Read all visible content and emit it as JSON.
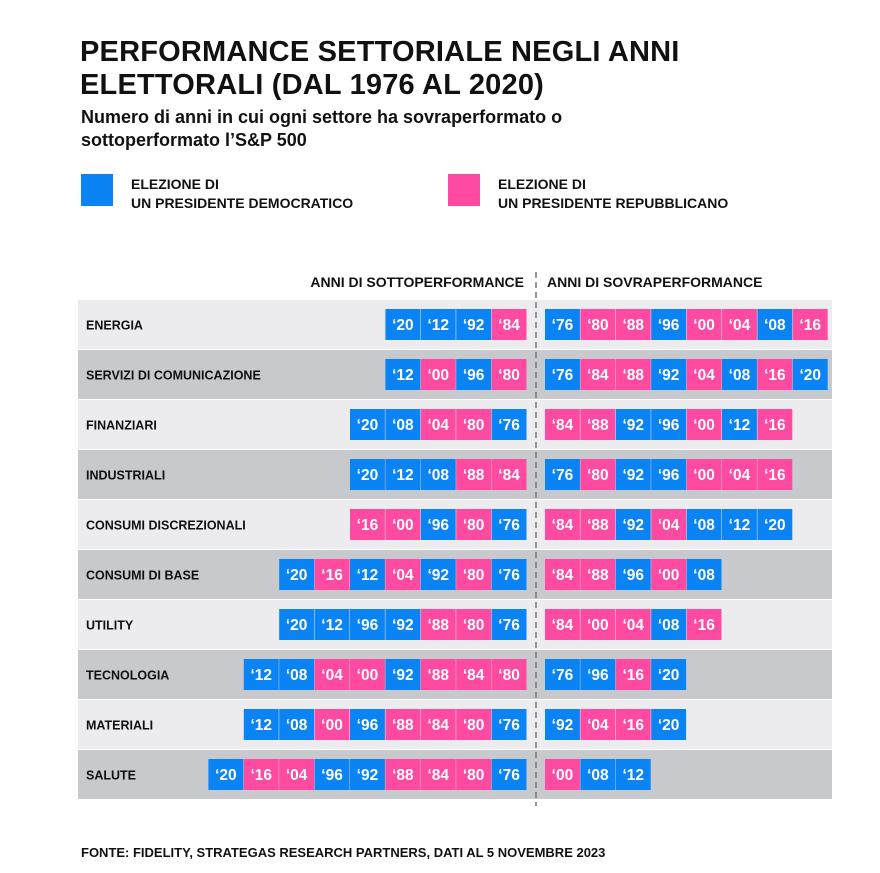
{
  "title": "PERFORMANCE SETTORIALE NEGLI ANNI ELETTORALI (DAL 1976 AL 2020)",
  "subtitle": "Numero di anni in cui ogni settore ha sovraperformato o sottoperformato l’S&P 500",
  "legend": {
    "democratic": {
      "label_line1": "ELEZIONE DI",
      "label_line2": "UN PRESIDENTE DEMOCRATICO",
      "color": "#0a84f5"
    },
    "republican": {
      "label_line1": "ELEZIONE DI",
      "label_line2": "UN PRESIDENTE REPUBBLICANO",
      "color": "#ff4aa1"
    }
  },
  "headers": {
    "under": "ANNI DI SOTTOPERFORMANCE",
    "over": "ANNI DI SOVRAPERFORMANCE"
  },
  "colors": {
    "row_light": "#ececef",
    "row_dark": "#c8c9cd",
    "divider": "#777777"
  },
  "source": "FONTE: FIDELITY, STRATEGAS RESEARCH PARTNERS, DATI AL 5 NOVEMBRE 2023",
  "chart_data": {
    "type": "table",
    "party_by_year": {
      "'76": "D",
      "'80": "R",
      "'84": "R",
      "'88": "R",
      "'92": "D",
      "'96": "D",
      "'00": "R",
      "'04": "R",
      "'08": "D",
      "'12": "D",
      "'16": "R",
      "'20": "D"
    },
    "sectors": [
      {
        "name": "ENERGIA",
        "under": [
          "'20",
          "'12",
          "'92",
          "'84"
        ],
        "over": [
          "'76",
          "'80",
          "'88",
          "'96",
          "'00",
          "'04",
          "'08",
          "'16"
        ]
      },
      {
        "name": "SERVIZI DI COMUNICAZIONE",
        "under": [
          "'12",
          "'00",
          "'96",
          "'80"
        ],
        "over": [
          "'76",
          "'84",
          "'88",
          "'92",
          "'04",
          "'08",
          "'16",
          "'20"
        ]
      },
      {
        "name": "FINANZIARI",
        "under": [
          "'20",
          "'08",
          "'04",
          "'80",
          "'76"
        ],
        "over": [
          "'84",
          "'88",
          "'92",
          "'96",
          "'00",
          "'12",
          "'16"
        ]
      },
      {
        "name": "INDUSTRIALI",
        "under": [
          "'20",
          "'12",
          "'08",
          "'88",
          "'84"
        ],
        "over": [
          "'76",
          "'80",
          "'92",
          "'96",
          "'00",
          "'04",
          "'16"
        ]
      },
      {
        "name": "CONSUMI DISCREZIONALI",
        "under": [
          "'16",
          "'00",
          "'96",
          "'80",
          "'76"
        ],
        "over": [
          "'84",
          "'88",
          "'92",
          "'04",
          "'08",
          "'12",
          "'20"
        ]
      },
      {
        "name": "CONSUMI DI BASE",
        "under": [
          "'20",
          "'16",
          "'12",
          "'04",
          "'92",
          "'80",
          "'76"
        ],
        "over": [
          "'84",
          "'88",
          "'96",
          "'00",
          "'08"
        ]
      },
      {
        "name": "UTILITY",
        "under": [
          "'20",
          "'12",
          "'96",
          "'92",
          "'88",
          "'80",
          "'76"
        ],
        "over": [
          "'84",
          "'00",
          "'04",
          "'08",
          "'16"
        ]
      },
      {
        "name": "TECNOLOGIA",
        "under": [
          "'12",
          "'08",
          "'04",
          "'00",
          "'92",
          "'88",
          "'84",
          "'80"
        ],
        "over": [
          "'76",
          "'96",
          "'16",
          "'20"
        ]
      },
      {
        "name": "MATERIALI",
        "under": [
          "'12",
          "'08",
          "'00",
          "'96",
          "'88",
          "'84",
          "'80",
          "'76"
        ],
        "over": [
          "'92",
          "'04",
          "'16",
          "'20"
        ]
      },
      {
        "name": "SALUTE",
        "under": [
          "'20",
          "'16",
          "'04",
          "'96",
          "'92",
          "'88",
          "'84",
          "'80",
          "'76"
        ],
        "over": [
          "'00",
          "'08",
          "'12"
        ]
      }
    ]
  }
}
